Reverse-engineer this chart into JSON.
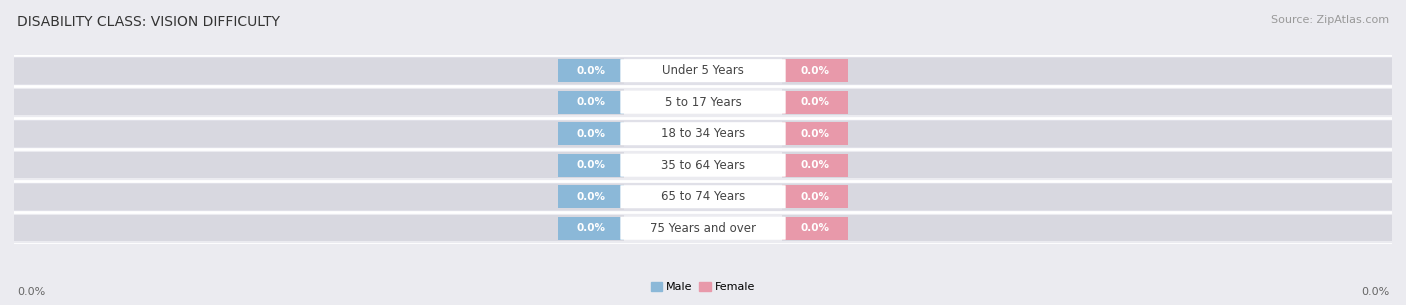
{
  "title": "DISABILITY CLASS: VISION DIFFICULTY",
  "source": "Source: ZipAtlas.com",
  "categories": [
    "Under 5 Years",
    "5 to 17 Years",
    "18 to 34 Years",
    "35 to 64 Years",
    "65 to 74 Years",
    "75 Years and over"
  ],
  "male_values": [
    0.0,
    0.0,
    0.0,
    0.0,
    0.0,
    0.0
  ],
  "female_values": [
    0.0,
    0.0,
    0.0,
    0.0,
    0.0,
    0.0
  ],
  "male_color": "#8bb8d8",
  "female_color": "#e899aa",
  "male_label": "Male",
  "female_label": "Female",
  "row_bg_colors": [
    "#ebebf0",
    "#e0e0e8"
  ],
  "bar_bg_color": "#d8d8e0",
  "title_fontsize": 10,
  "source_fontsize": 8,
  "tick_fontsize": 8,
  "category_fontsize": 8.5,
  "value_fontsize": 7.5,
  "background_color": "#ebebf0",
  "separator_color": "#ffffff",
  "center_box_color": "#ffffff",
  "value_text_color": "#ffffff",
  "category_text_color": "#444444",
  "axis_tick_color": "#666666"
}
